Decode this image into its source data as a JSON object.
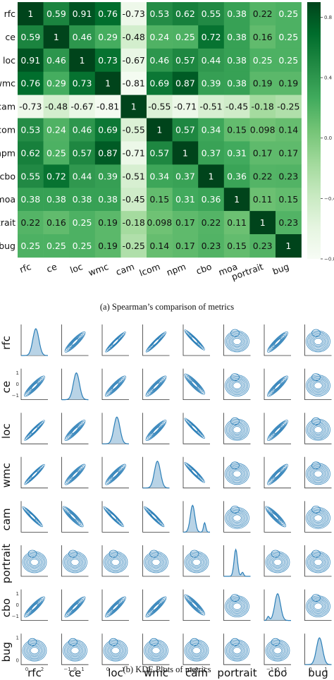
{
  "captions": {
    "a": "(a) Spearman’s comparison of metrics",
    "b": "(b) KDE Plots of metrics"
  },
  "chart_data": [
    {
      "type": "heatmap",
      "colormap": "Greens",
      "low_color": "#f7fcf5",
      "high_color": "#00441b",
      "labels": [
        "rfc",
        "ce",
        "loc",
        "wmc",
        "cam",
        "lcom",
        "npm",
        "cbo",
        "moa",
        "portrait",
        "bug"
      ],
      "matrix": [
        [
          1,
          0.59,
          0.91,
          0.76,
          -0.73,
          0.53,
          0.62,
          0.55,
          0.38,
          0.22,
          0.25
        ],
        [
          0.59,
          1,
          0.46,
          0.29,
          -0.48,
          0.24,
          0.25,
          0.72,
          0.38,
          0.16,
          0.25
        ],
        [
          0.91,
          0.46,
          1,
          0.73,
          -0.67,
          0.46,
          0.57,
          0.44,
          0.38,
          0.25,
          0.25
        ],
        [
          0.76,
          0.29,
          0.73,
          1,
          -0.81,
          0.69,
          0.87,
          0.39,
          0.38,
          0.19,
          0.19
        ],
        [
          -0.73,
          -0.48,
          -0.67,
          -0.81,
          1,
          -0.55,
          -0.71,
          -0.51,
          -0.45,
          -0.18,
          -0.25
        ],
        [
          0.53,
          0.24,
          0.46,
          0.69,
          -0.55,
          1,
          0.57,
          0.34,
          0.15,
          0.098,
          0.14
        ],
        [
          0.62,
          0.25,
          0.57,
          0.87,
          -0.71,
          0.57,
          1,
          0.37,
          0.31,
          0.17,
          0.17
        ],
        [
          0.55,
          0.72,
          0.44,
          0.39,
          -0.51,
          0.34,
          0.37,
          1,
          0.36,
          0.22,
          0.23
        ],
        [
          0.38,
          0.38,
          0.38,
          0.38,
          -0.45,
          0.15,
          0.31,
          0.36,
          1,
          0.11,
          0.15
        ],
        [
          0.22,
          0.16,
          0.25,
          0.19,
          -0.18,
          0.098,
          0.17,
          0.22,
          0.11,
          1,
          0.23
        ],
        [
          0.25,
          0.25,
          0.25,
          0.19,
          -0.25,
          0.14,
          0.17,
          0.23,
          0.15,
          0.23,
          1
        ]
      ],
      "colorbar": {
        "range": [
          -0.8,
          0.9
        ],
        "ticks": [
          "0.8",
          "0.4",
          "0.0",
          "−0.4",
          "−0.8"
        ],
        "tick_values": [
          0.8,
          0.4,
          0,
          -0.4,
          -0.8
        ]
      }
    },
    {
      "type": "pairplot-kde",
      "variables": [
        "rfc",
        "ce",
        "loc",
        "wmc",
        "cam",
        "portrait",
        "cbo",
        "bug"
      ],
      "line_color": "#2c7fb8",
      "fill_color": "#a6c8e0",
      "row_ticks": {
        "rfc": [],
        "ce": [
          "1",
          "0",
          "−1"
        ],
        "loc": [],
        "wmc": [],
        "cam": [],
        "portrait": [],
        "cbo": [
          "1",
          "0",
          "−1"
        ],
        "bug": [
          "1",
          "0"
        ]
      },
      "col_ticks": {
        "rfc": [
          "0",
          "2"
        ],
        "ce": [
          "−1",
          "0",
          "1"
        ],
        "loc": [
          "0",
          "1"
        ],
        "wmc": [
          "0",
          "1"
        ],
        "cam": [
          "−2",
          "0",
          "2"
        ],
        "portrait": [],
        "cbo": [
          "−1",
          "0",
          "1"
        ],
        "bug": [
          "0",
          "1"
        ]
      }
    }
  ]
}
